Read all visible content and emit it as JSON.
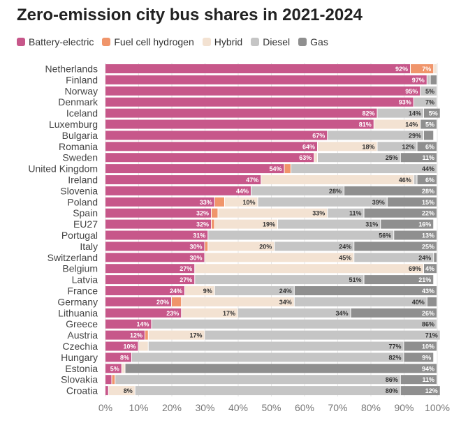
{
  "colors": {
    "Battery-electric": "#c7578a",
    "Fuel cell hydrogen": "#f0956b",
    "Hybrid": "#f3e2d2",
    "Diesel": "#c5c5c5",
    "Gas": "#8f8f8f"
  },
  "chart_data": {
    "type": "bar",
    "orientation": "horizontal",
    "stacked": true,
    "title": "Zero-emission city bus shares in 2021-2024",
    "xlabel": "",
    "ylabel": "",
    "xlim": [
      0,
      100
    ],
    "xticks": [
      "0%",
      "10%",
      "20%",
      "30%",
      "40%",
      "50%",
      "60%",
      "70%",
      "80%",
      "90%",
      "100%"
    ],
    "legend_position": "top-left",
    "grid": true,
    "categories": [
      "Netherlands",
      "Finland",
      "Norway",
      "Denmark",
      "Iceland",
      "Luxemburg",
      "Bulgaria",
      "Romania",
      "Sweden",
      "United Kingdom",
      "Ireland",
      "Slovenia",
      "Poland",
      "Spain",
      "EU27",
      "Portugal",
      "Italy",
      "Switzerland",
      "Belgium",
      "Latvia",
      "France",
      "Germany",
      "Lithuania",
      "Greece",
      "Austria",
      "Czechia",
      "Hungary",
      "Estonia",
      "Slovakia",
      "Croatia"
    ],
    "series": [
      {
        "name": "Battery-electric",
        "values": [
          92,
          97,
          95,
          93,
          82,
          81,
          67,
          64,
          63,
          54,
          47,
          44,
          33,
          32,
          32,
          31,
          30,
          30,
          27,
          27,
          24,
          20,
          23,
          14,
          12,
          10,
          8,
          5,
          2,
          1
        ]
      },
      {
        "name": "Fuel cell hydrogen",
        "values": [
          7,
          0,
          0,
          0,
          0,
          0,
          0,
          0,
          0,
          2,
          0,
          0,
          3,
          2,
          1,
          0,
          1,
          0,
          0,
          0,
          0,
          3,
          0,
          0,
          1,
          0,
          0,
          0,
          1,
          0
        ]
      },
      {
        "name": "Hybrid",
        "values": [
          1,
          0,
          0,
          0,
          0,
          14,
          0,
          18,
          1,
          0,
          46,
          0,
          10,
          33,
          19,
          0,
          20,
          45,
          69,
          0,
          9,
          34,
          17,
          0,
          17,
          3,
          0,
          1,
          0,
          8
        ]
      },
      {
        "name": "Diesel",
        "values": [
          0,
          1,
          5,
          7,
          14,
          0,
          29,
          12,
          25,
          44,
          1,
          28,
          39,
          11,
          31,
          56,
          24,
          24,
          0,
          51,
          24,
          40,
          34,
          86,
          71,
          77,
          82,
          0,
          86,
          80
        ]
      },
      {
        "name": "Gas",
        "values": [
          0,
          2,
          0,
          0,
          5,
          5,
          3,
          6,
          11,
          0,
          6,
          28,
          15,
          22,
          16,
          13,
          25,
          1,
          4,
          21,
          43,
          3,
          26,
          0,
          0,
          10,
          9,
          94,
          11,
          12
        ]
      }
    ],
    "data_labels": [
      [
        "92%",
        "7%",
        "",
        "",
        ""
      ],
      [
        "97%",
        "",
        "",
        "",
        ""
      ],
      [
        "95%",
        "",
        "",
        "5%",
        ""
      ],
      [
        "93%",
        "",
        "",
        "7%",
        ""
      ],
      [
        "82%",
        "",
        "",
        "14%",
        "5%"
      ],
      [
        "81%",
        "",
        "14%",
        "",
        "5%"
      ],
      [
        "67%",
        "",
        "",
        "29%",
        ""
      ],
      [
        "64%",
        "",
        "18%",
        "12%",
        "6%"
      ],
      [
        "63%",
        "",
        "",
        "25%",
        "11%"
      ],
      [
        "54%",
        "",
        "",
        "44%",
        ""
      ],
      [
        "47%",
        "",
        "46%",
        "",
        "6%"
      ],
      [
        "44%",
        "",
        "",
        "28%",
        "28%"
      ],
      [
        "33%",
        "",
        "10%",
        "39%",
        "15%"
      ],
      [
        "32%",
        "",
        "33%",
        "11%",
        "22%"
      ],
      [
        "32%",
        "",
        "19%",
        "31%",
        "16%"
      ],
      [
        "31%",
        "",
        "",
        "56%",
        "13%"
      ],
      [
        "30%",
        "",
        "20%",
        "24%",
        "25%"
      ],
      [
        "30%",
        "",
        "45%",
        "24%",
        ""
      ],
      [
        "27%",
        "",
        "69%",
        "",
        "4%"
      ],
      [
        "27%",
        "",
        "",
        "51%",
        "21%"
      ],
      [
        "24%",
        "",
        "9%",
        "24%",
        "43%"
      ],
      [
        "20%",
        "",
        "34%",
        "40%",
        ""
      ],
      [
        "23%",
        "",
        "17%",
        "34%",
        "26%"
      ],
      [
        "14%",
        "",
        "",
        "86%",
        ""
      ],
      [
        "12%",
        "",
        "17%",
        "71%",
        ""
      ],
      [
        "10%",
        "",
        "",
        "77%",
        "10%"
      ],
      [
        "8%",
        "",
        "",
        "82%",
        "9%"
      ],
      [
        "5%",
        "",
        "",
        "",
        "94%"
      ],
      [
        "",
        "",
        "",
        "86%",
        "11%"
      ],
      [
        "",
        "",
        "8%",
        "80%",
        "12%"
      ]
    ]
  }
}
